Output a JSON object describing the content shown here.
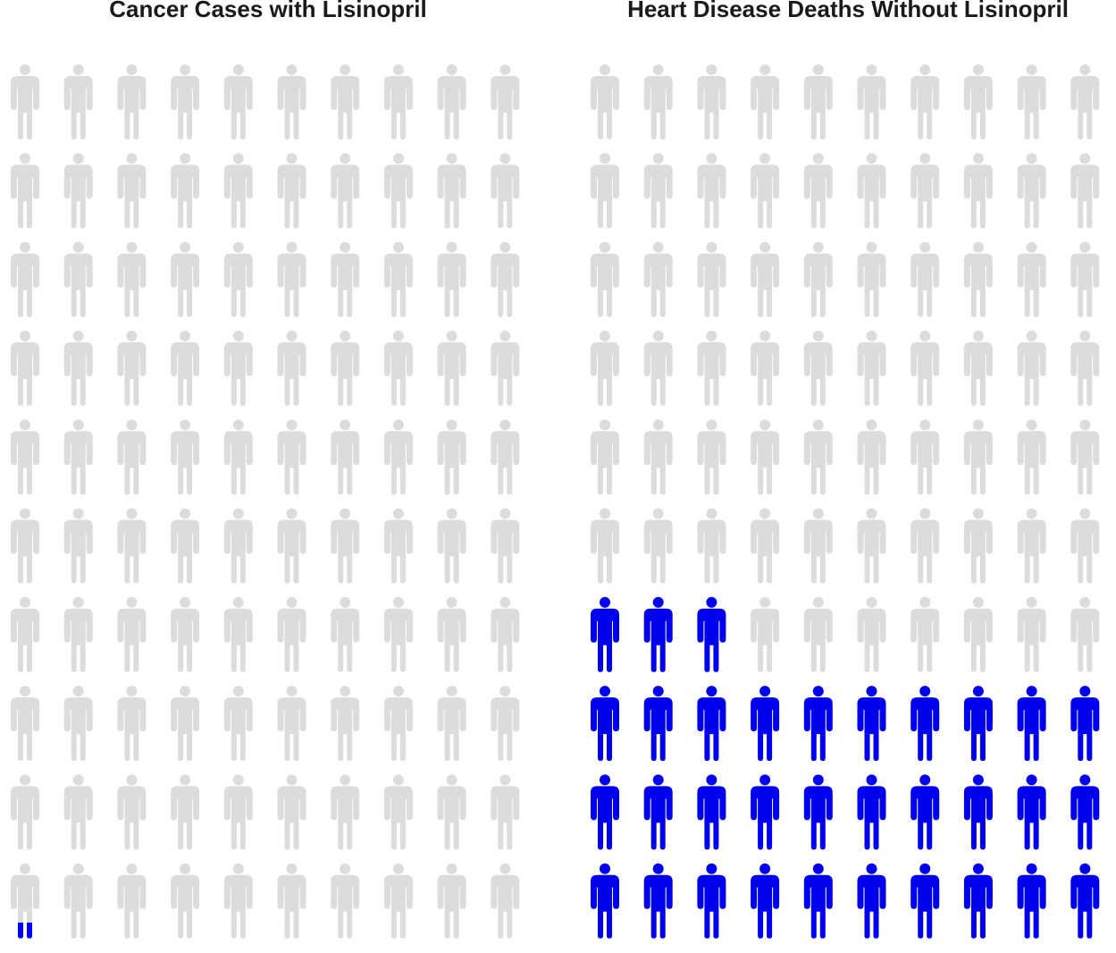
{
  "colors": {
    "background": "#ffffff",
    "inactive": "#dcdcdc",
    "highlight": "#0000ee",
    "title": "#1a1a1a"
  },
  "chart_data": [
    {
      "type": "pictogram",
      "title": "Cancer Cases with Lisinopril",
      "rows": 10,
      "cols": 10,
      "total": 100,
      "highlighted_value": 0.3,
      "fill_order": "bottom-left-first",
      "icon": "person-icon"
    },
    {
      "type": "pictogram",
      "title": "Heart Disease Deaths Without Lisinopril",
      "rows": 10,
      "cols": 10,
      "total": 100,
      "highlighted_value": 33,
      "fill_order": "bottom-left-first",
      "icon": "person-icon"
    }
  ]
}
